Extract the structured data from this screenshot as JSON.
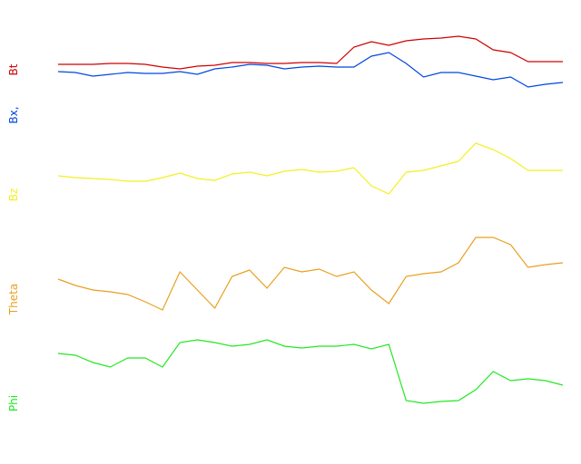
{
  "chart_data": [
    {
      "type": "line",
      "ylim": [
        0,
        70
      ],
      "series": [
        {
          "name": "Bt",
          "color": "#d00000",
          "values": [
            29,
            29,
            29,
            30,
            30,
            29,
            26,
            24,
            27,
            28,
            31,
            31,
            30,
            30,
            31,
            31,
            30,
            48,
            54,
            50,
            55,
            57,
            58,
            60,
            57,
            45,
            42,
            32,
            32,
            32
          ]
        },
        {
          "name": "Bx,",
          "color": "#0048e0",
          "values": [
            21,
            20,
            16,
            18,
            20,
            19,
            19,
            21,
            18,
            24,
            26,
            29,
            28,
            24,
            26,
            27,
            26,
            26,
            38,
            42,
            30,
            15,
            20,
            20,
            16,
            12,
            15,
            4,
            7,
            9
          ]
        }
      ]
    },
    {
      "type": "line",
      "ylim": [
        0,
        80
      ],
      "series": [
        {
          "name": "Bz",
          "color": "#f4f020",
          "values": [
            36,
            34,
            33,
            32,
            30,
            30,
            34,
            39,
            33,
            31,
            38,
            40,
            36,
            41,
            43,
            40,
            41,
            45,
            25,
            16,
            40,
            42,
            47,
            52,
            72,
            65,
            55,
            42,
            42,
            42
          ]
        }
      ]
    },
    {
      "type": "line",
      "ylim": [
        0,
        110
      ],
      "series": [
        {
          "name": "Theta",
          "color": "#e8a020",
          "values": [
            52,
            45,
            40,
            38,
            35,
            27,
            18,
            60,
            40,
            20,
            55,
            62,
            42,
            65,
            60,
            63,
            55,
            60,
            40,
            25,
            55,
            58,
            60,
            70,
            98,
            98,
            90,
            65,
            68,
            70
          ]
        }
      ]
    },
    {
      "type": "line",
      "ylim": [
        0,
        105
      ],
      "series": [
        {
          "name": "Phi",
          "color": "#22e822",
          "values": [
            80,
            78,
            70,
            65,
            75,
            75,
            65,
            92,
            95,
            92,
            88,
            90,
            95,
            88,
            86,
            88,
            88,
            90,
            85,
            90,
            28,
            25,
            27,
            28,
            40,
            60,
            50,
            52,
            50,
            45
          ]
        }
      ]
    }
  ]
}
